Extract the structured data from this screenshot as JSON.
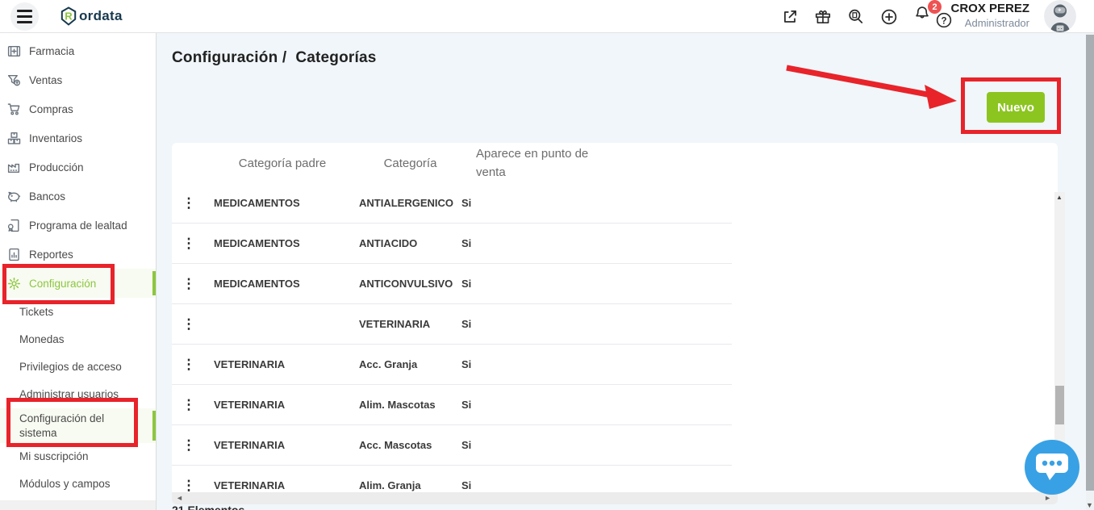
{
  "topbar": {
    "logo_text": "ordata",
    "logo_letter": "R",
    "notification_count": "2",
    "user_name": "CROX PEREZ",
    "user_role": "Administrador"
  },
  "sidebar": {
    "items": [
      {
        "label": "Farmacia",
        "icon": "pharmacy-icon"
      },
      {
        "label": "Ventas",
        "icon": "sales-funnel-icon"
      },
      {
        "label": "Compras",
        "icon": "cart-icon"
      },
      {
        "label": "Inventarios",
        "icon": "boxes-icon"
      },
      {
        "label": "Producción",
        "icon": "factory-icon"
      },
      {
        "label": "Bancos",
        "icon": "piggy-bank-icon"
      },
      {
        "label": "Programa de lealtad",
        "icon": "loyalty-icon"
      },
      {
        "label": "Reportes",
        "icon": "report-icon"
      },
      {
        "label": "Configuración",
        "icon": "gear-icon",
        "active": true
      }
    ],
    "subitems": [
      {
        "label": "Tickets"
      },
      {
        "label": "Monedas"
      },
      {
        "label": "Privilegios de acceso"
      },
      {
        "label": "Administrar usuarios"
      },
      {
        "label": "Configuración del sistema",
        "active": true
      },
      {
        "label": "Mi suscripción"
      },
      {
        "label": "Módulos y campos"
      }
    ]
  },
  "main": {
    "breadcrumb": {
      "section": "Configuración",
      "separator": "/",
      "page": "Categorías"
    },
    "new_button_label": "Nuevo",
    "table": {
      "headers": [
        "Categoría padre",
        "Categoría",
        "Aparece en punto de venta"
      ],
      "rows": [
        {
          "parent": "MEDICAMENTOS",
          "category": "ANTIALERGENICO",
          "pos": "Si"
        },
        {
          "parent": "MEDICAMENTOS",
          "category": "ANTIACIDO",
          "pos": "Si"
        },
        {
          "parent": "MEDICAMENTOS",
          "category": "ANTICONVULSIVO",
          "pos": "Si"
        },
        {
          "parent": "",
          "category": "VETERINARIA",
          "pos": "Si"
        },
        {
          "parent": "VETERINARIA",
          "category": "Acc. Granja",
          "pos": "Si"
        },
        {
          "parent": "VETERINARIA",
          "category": "Alim. Mascotas",
          "pos": "Si"
        },
        {
          "parent": "VETERINARIA",
          "category": "Acc. Mascotas",
          "pos": "Si"
        },
        {
          "parent": "VETERINARIA",
          "category": "Alim. Granja",
          "pos": "Si"
        }
      ],
      "footer_count": "21 Elementos"
    }
  },
  "colors": {
    "accent_green": "#8cc63f",
    "button_green": "#8cc520",
    "annotation_red": "#e8232a",
    "chat_blue": "#38a1e5",
    "badge_red": "#ee5253",
    "content_bg": "#f0f6f9"
  }
}
